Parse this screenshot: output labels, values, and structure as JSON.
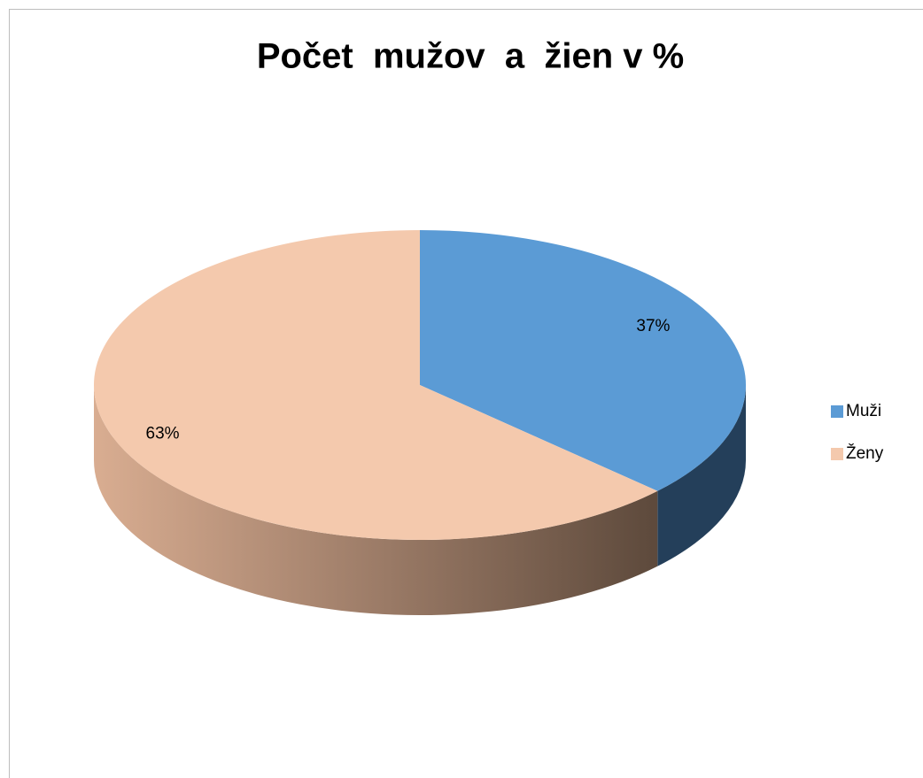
{
  "chart_data": {
    "type": "pie",
    "title": "Počet  mužov  a  žien v %",
    "categories": [
      "Muži",
      "Ženy"
    ],
    "values": [
      37,
      63
    ],
    "value_labels": [
      "37%",
      "63%"
    ],
    "colors": [
      "#5b9bd5",
      "#f4c9ad"
    ],
    "legend": "right"
  }
}
